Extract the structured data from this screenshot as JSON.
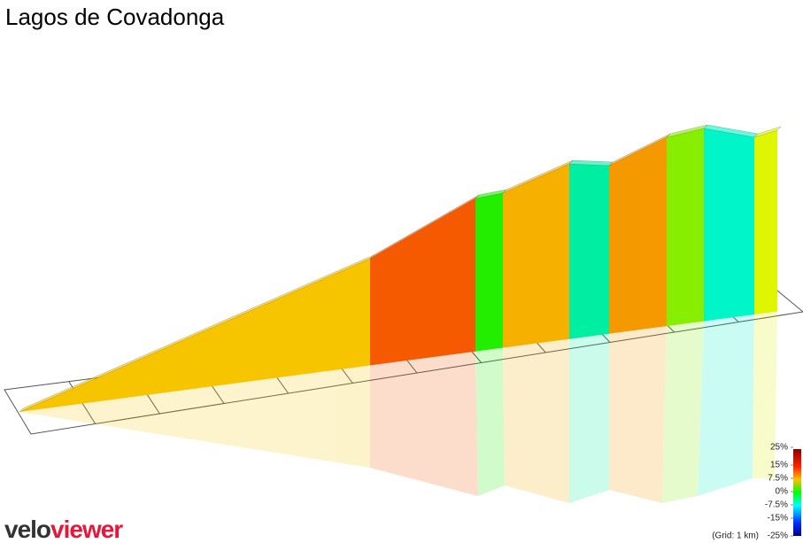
{
  "chart_data": {
    "type": "profile3d",
    "title": "Lagos de Covadonga",
    "colorbar": {
      "ylim": [
        -25,
        25
      ],
      "ticks": [
        {
          "value": 25,
          "label": "25%"
        },
        {
          "value": 15,
          "label": "15%"
        },
        {
          "value": 7.5,
          "label": "7.5%"
        },
        {
          "value": 0,
          "label": "0%"
        },
        {
          "value": -7.5,
          "label": "-7.5%"
        },
        {
          "value": -15,
          "label": "-15%"
        },
        {
          "value": -25,
          "label": "-25%"
        }
      ]
    },
    "grid_note": "(Grid: 1 km)",
    "logo": {
      "part1": "velo",
      "part2": "viewer"
    }
  }
}
